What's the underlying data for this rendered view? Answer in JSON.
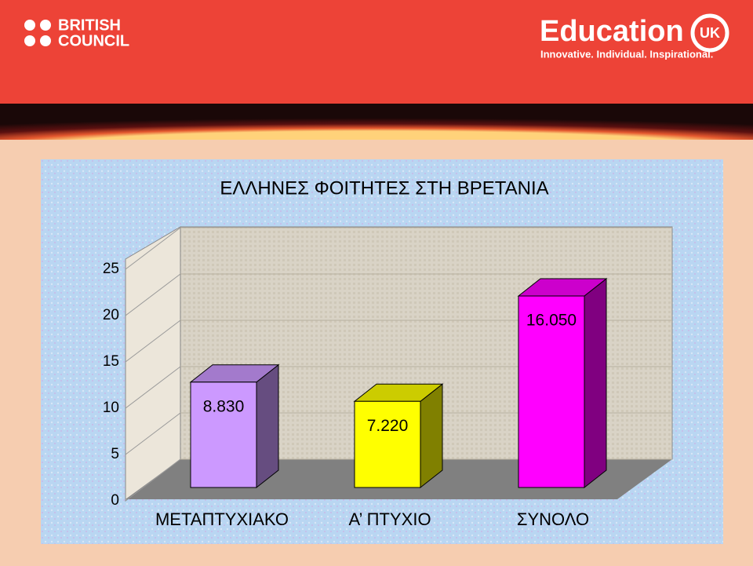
{
  "header": {
    "brand_line1": "BRITISH",
    "brand_line2": "COUNCIL",
    "logo_text": "Education",
    "logo_badge": "UK",
    "tagline": "Innovative. Individual. Inspirational."
  },
  "chart_data": {
    "type": "bar3d",
    "title": "ΕΛΛΗΝΕΣ ΦΟΙΤΗΤΕΣ ΣΤΗ ΒΡΕΤΑΝΙΑ",
    "categories": [
      "ΜΕΤΑΠΤΥΧΙΑΚΟ",
      "Α’ ΠΤΥΧΙΟ",
      "ΣΥΝΟΛΟ"
    ],
    "values": [
      8.83,
      7.22,
      16.05
    ],
    "value_labels": [
      "8.830",
      "7.220",
      "16.050"
    ],
    "colors": [
      "#cc99ff",
      "#ffff00",
      "#ff00ff"
    ],
    "ylim": [
      0,
      25
    ],
    "yticks": [
      0,
      5,
      10,
      15,
      20,
      25
    ],
    "grid": true
  }
}
